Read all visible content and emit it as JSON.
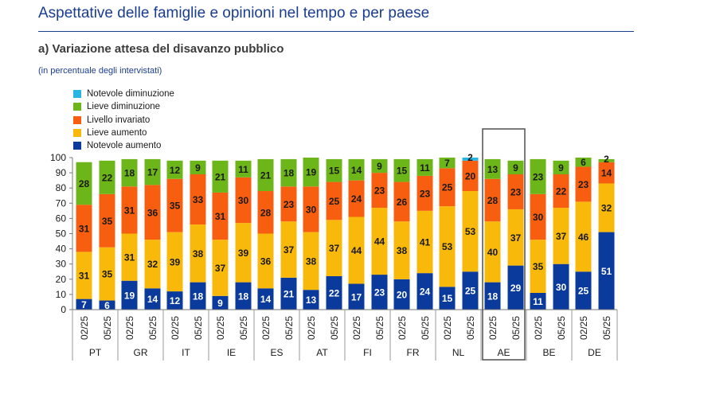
{
  "page": {
    "title": "Aspettative delle famiglie e opinioni nel tempo e per paese"
  },
  "chart_data": {
    "type": "bar",
    "stacked": true,
    "title": "a) Variazione attesa del disavanzo pubblico",
    "subtitle": "(in percentuale degli intervistati)",
    "ylim": [
      0,
      100
    ],
    "yticks": [
      0,
      10,
      20,
      30,
      40,
      50,
      60,
      70,
      80,
      90,
      100
    ],
    "legend_position": "top-left",
    "highlighted_group": "AE",
    "groups": [
      "PT",
      "GR",
      "IT",
      "IE",
      "ES",
      "AT",
      "FI",
      "FR",
      "NL",
      "AE",
      "BE",
      "DE"
    ],
    "periods": [
      "02/25",
      "05/25"
    ],
    "categories": [
      "02/25",
      "05/25",
      "02/25",
      "05/25",
      "02/25",
      "05/25",
      "02/25",
      "05/25",
      "02/25",
      "05/25",
      "02/25",
      "05/25",
      "02/25",
      "05/25",
      "02/25",
      "05/25",
      "02/25",
      "05/25",
      "02/25",
      "05/25",
      "02/25",
      "05/25",
      "02/25",
      "05/25"
    ],
    "series": [
      {
        "name": "Notevole aumento",
        "color": "#0a3a9b",
        "label_color": "#ffffff",
        "values": [
          7,
          6,
          19,
          14,
          12,
          18,
          9,
          18,
          14,
          21,
          13,
          22,
          17,
          23,
          20,
          24,
          15,
          25,
          18,
          29,
          11,
          30,
          25,
          51
        ]
      },
      {
        "name": "Lieve aumento",
        "color": "#f9b90b",
        "label_color": "#1a1a1a",
        "values": [
          31,
          35,
          31,
          32,
          39,
          38,
          37,
          39,
          36,
          37,
          38,
          37,
          44,
          44,
          38,
          41,
          53,
          53,
          40,
          37,
          35,
          37,
          46,
          32
        ]
      },
      {
        "name": "Livello invariato",
        "color": "#f75e10",
        "label_color": "#1a1a1a",
        "values": [
          31,
          35,
          31,
          36,
          35,
          33,
          31,
          30,
          28,
          23,
          30,
          25,
          24,
          23,
          26,
          23,
          25,
          20,
          28,
          23,
          30,
          22,
          23,
          14
        ]
      },
      {
        "name": "Lieve diminuzione",
        "color": "#6db619",
        "label_color": "#1a1a1a",
        "values": [
          28,
          22,
          18,
          17,
          12,
          9,
          21,
          11,
          21,
          18,
          19,
          15,
          14,
          9,
          15,
          11,
          7,
          null,
          13,
          9,
          23,
          9,
          6,
          2
        ]
      },
      {
        "name": "Notevole diminuzione",
        "color": "#29b5e4",
        "label_color": "#1a1a1a",
        "values": [
          null,
          null,
          null,
          null,
          null,
          null,
          null,
          null,
          null,
          null,
          null,
          null,
          null,
          null,
          null,
          null,
          null,
          2,
          null,
          null,
          null,
          null,
          null,
          null
        ]
      }
    ]
  }
}
